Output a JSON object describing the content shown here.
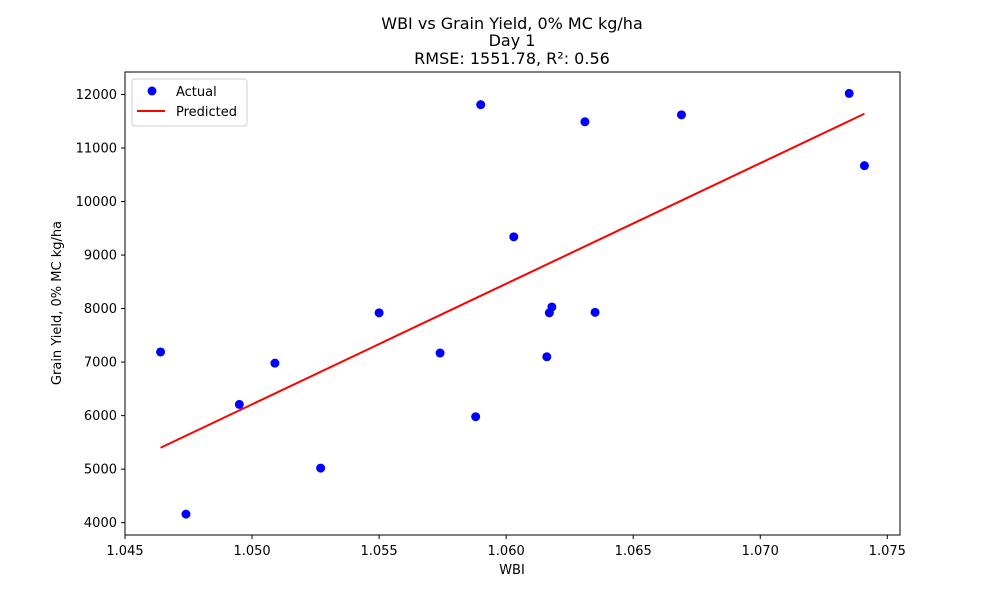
{
  "chart_data": {
    "type": "scatter",
    "title_lines": [
      "WBI vs Grain Yield, 0% MC kg/ha",
      "Day 1",
      "RMSE: 1551.78, R²: 0.56"
    ],
    "xlabel": "WBI",
    "ylabel": "Grain Yield, 0% MC kg/ha",
    "xlim": [
      1.045,
      1.0755
    ],
    "ylim": [
      3770,
      12420
    ],
    "x_ticks": [
      1.045,
      1.05,
      1.055,
      1.06,
      1.065,
      1.07,
      1.075
    ],
    "x_tick_labels": [
      "1.045",
      "1.050",
      "1.055",
      "1.060",
      "1.065",
      "1.070",
      "1.075"
    ],
    "y_ticks": [
      4000,
      5000,
      6000,
      7000,
      8000,
      9000,
      10000,
      11000,
      12000
    ],
    "y_tick_labels": [
      "4000",
      "5000",
      "6000",
      "7000",
      "8000",
      "9000",
      "10000",
      "11000",
      "12000"
    ],
    "grid": false,
    "legend_position": "top-left",
    "series": [
      {
        "name": "Actual",
        "kind": "scatter",
        "color": "#0000ff",
        "points": [
          [
            1.0464,
            7190
          ],
          [
            1.0474,
            4160
          ],
          [
            1.0495,
            6210
          ],
          [
            1.0509,
            6980
          ],
          [
            1.0527,
            5020
          ],
          [
            1.055,
            7920
          ],
          [
            1.0574,
            7170
          ],
          [
            1.0588,
            5980
          ],
          [
            1.059,
            11810
          ],
          [
            1.0603,
            9340
          ],
          [
            1.0616,
            7100
          ],
          [
            1.0617,
            7920
          ],
          [
            1.0618,
            8030
          ],
          [
            1.0631,
            11490
          ],
          [
            1.0635,
            7930
          ],
          [
            1.0669,
            11620
          ],
          [
            1.0735,
            12020
          ],
          [
            1.0741,
            10670
          ]
        ]
      },
      {
        "name": "Predicted",
        "kind": "line",
        "color": "#ff0000",
        "points": [
          [
            1.0464,
            5400
          ],
          [
            1.0741,
            11640
          ]
        ]
      }
    ]
  }
}
